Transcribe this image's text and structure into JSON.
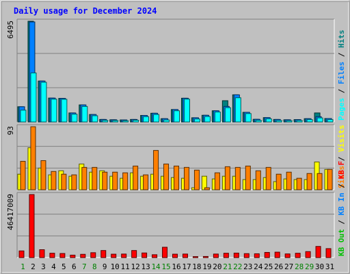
{
  "chart_data": {
    "type": "bar",
    "title": "Daily usage for December 2024",
    "categories": [
      "1",
      "2",
      "3",
      "4",
      "5",
      "6",
      "7",
      "8",
      "9",
      "10",
      "11",
      "12",
      "13",
      "14",
      "15",
      "16",
      "17",
      "18",
      "19",
      "20",
      "21",
      "22",
      "23",
      "24",
      "25",
      "26",
      "27",
      "28",
      "29",
      "30",
      "31"
    ],
    "weekend_days": [
      "1",
      "7",
      "8",
      "14",
      "15",
      "21",
      "22",
      "28",
      "29"
    ],
    "panels": [
      {
        "id": "top",
        "max_label": "6495",
        "ylim": [
          0,
          6495
        ],
        "legend": [
          {
            "label": "Hits",
            "color": "#008080"
          },
          {
            "label": "Files",
            "color": "#0080ff"
          },
          {
            "label": "Pages",
            "color": "#00ffff"
          }
        ],
        "series": [
          {
            "name": "Hits",
            "color": "#008080",
            "values": [
              980,
              6495,
              2640,
              1540,
              1520,
              580,
              1100,
              480,
              160,
              140,
              130,
              160,
              420,
              560,
              210,
              800,
              1530,
              270,
              430,
              720,
              1370,
              1750,
              620,
              170,
              280,
              160,
              140,
              150,
              210,
              580,
              220
            ]
          },
          {
            "name": "Files",
            "color": "#0080ff",
            "values": [
              980,
              6450,
              2640,
              1540,
              1520,
              580,
              1100,
              480,
              160,
              140,
              130,
              160,
              420,
              560,
              210,
              800,
              1530,
              270,
              430,
              720,
              1000,
              1750,
              620,
              170,
              280,
              160,
              140,
              150,
              210,
              340,
              220
            ]
          },
          {
            "name": "Pages",
            "color": "#00ffff",
            "values": [
              760,
              3160,
              2560,
              1470,
              1460,
              500,
              1000,
              400,
              100,
              90,
              80,
              110,
              340,
              480,
              130,
              720,
              1470,
              190,
              350,
              640,
              920,
              1560,
              540,
              100,
              200,
              90,
              80,
              90,
              150,
              260,
              150
            ]
          }
        ]
      },
      {
        "id": "middle",
        "max_label": "93",
        "ylim": [
          0,
          93
        ],
        "legend": [
          {
            "label": "Visits",
            "color": "#ffff00"
          },
          {
            "label": "Sites",
            "color": "#ff8000"
          }
        ],
        "series": [
          {
            "name": "Visits",
            "color": "#ffff00",
            "values": [
              23,
              62,
              32,
              22,
              28,
              20,
              38,
              26,
              28,
              20,
              17,
              25,
              20,
              23,
              20,
              18,
              17,
              3,
              20,
              16,
              20,
              20,
              15,
              15,
              18,
              12,
              16,
              15,
              15,
              41,
              30
            ]
          },
          {
            "name": "Sites",
            "color": "#ff8000",
            "values": [
              42,
              93,
              43,
              27,
              23,
              22,
              33,
              33,
              26,
              26,
              25,
              35,
              22,
              58,
              38,
              35,
              33,
              29,
              3,
              25,
              34,
              33,
              35,
              28,
              33,
              23,
              26,
              17,
              24,
              24,
              30
            ]
          }
        ]
      },
      {
        "id": "bottom",
        "max_label": "46417009",
        "ylim": [
          0,
          46417009
        ],
        "legend": [
          {
            "label": "KB F",
            "color": "#ff0000"
          },
          {
            "label": "KB In",
            "color": "#0080ff"
          },
          {
            "label": "KB Out",
            "color": "#00c000"
          }
        ],
        "series": [
          {
            "name": "KB F",
            "color": "#ff0000",
            "values": [
              4900000,
              46417009,
              5800000,
              3200000,
              3000000,
              1800000,
              2400000,
              3600000,
              5200000,
              2500000,
              2600000,
              5200000,
              3400000,
              2100000,
              7600000,
              2500000,
              2600000,
              700000,
              800000,
              2600000,
              3200000,
              3300000,
              2900000,
              2800000,
              3800000,
              4000000,
              2700000,
              3200000,
              4400000,
              8200000,
              6600000
            ]
          }
        ]
      }
    ],
    "grid": true
  }
}
